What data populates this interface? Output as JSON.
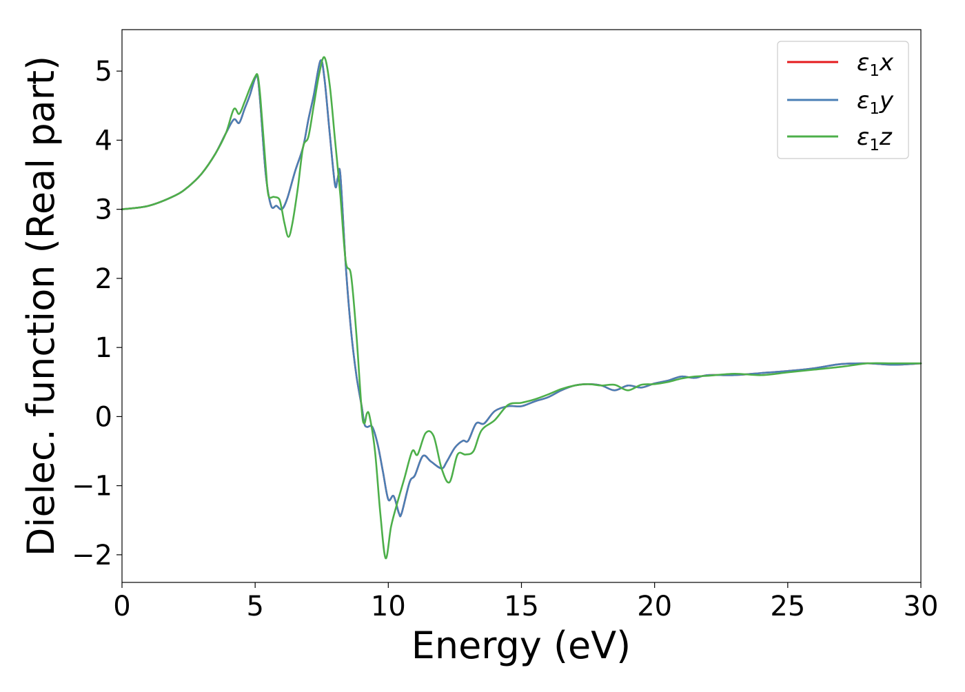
{
  "chart_data": {
    "type": "line",
    "title": "",
    "xlabel": "Energy (eV)",
    "ylabel": "Dielec. function (Real part)",
    "xlim": [
      0,
      30
    ],
    "ylim": [
      -2.4,
      5.6
    ],
    "xticks": [
      0,
      5,
      10,
      15,
      20,
      25,
      30
    ],
    "xtick_labels": [
      "0",
      "5",
      "10",
      "15",
      "20",
      "25",
      "30"
    ],
    "yticks": [
      -2,
      -1,
      0,
      1,
      2,
      3,
      4,
      5
    ],
    "ytick_labels": [
      "−2",
      "−1",
      "0",
      "1",
      "2",
      "3",
      "4",
      "5"
    ],
    "grid": false,
    "legend_position": "top-right",
    "series": [
      {
        "name": "ε1x",
        "legend": {
          "symbol": "ε",
          "sub": "1",
          "var": "x"
        },
        "color": "#e41a1c",
        "x": [
          0,
          1,
          2,
          2.5,
          3,
          3.5,
          3.9,
          4.2,
          4.4,
          4.6,
          4.8,
          5.0,
          5.1,
          5.2,
          5.4,
          5.6,
          5.8,
          6.0,
          6.2,
          6.5,
          6.8,
          7.0,
          7.2,
          7.45,
          7.6,
          7.8,
          8.0,
          8.1,
          8.2,
          8.4,
          8.6,
          8.8,
          9.0,
          9.1,
          9.2,
          9.4,
          9.6,
          9.8,
          10.0,
          10.2,
          10.4,
          10.5,
          10.8,
          11.0,
          11.3,
          11.6,
          12.0,
          12.2,
          12.5,
          12.8,
          13.0,
          13.3,
          13.6,
          14.0,
          14.5,
          15.0,
          15.5,
          16.0,
          16.5,
          17.0,
          17.5,
          18.0,
          18.5,
          19.0,
          19.5,
          20.0,
          20.5,
          21.0,
          21.5,
          22.0,
          23.0,
          24.0,
          25.0,
          26.0,
          27.0,
          28.0,
          29.0,
          30.0
        ],
        "y": [
          3.0,
          3.05,
          3.2,
          3.33,
          3.52,
          3.8,
          4.1,
          4.3,
          4.25,
          4.45,
          4.65,
          4.9,
          4.9,
          4.5,
          3.5,
          3.05,
          3.05,
          3.0,
          3.15,
          3.55,
          3.9,
          4.3,
          4.65,
          5.15,
          4.9,
          4.1,
          3.35,
          3.45,
          3.5,
          2.2,
          1.25,
          0.6,
          0.15,
          -0.1,
          -0.15,
          -0.15,
          -0.4,
          -0.8,
          -1.2,
          -1.15,
          -1.4,
          -1.4,
          -0.95,
          -0.85,
          -0.57,
          -0.65,
          -0.75,
          -0.65,
          -0.45,
          -0.35,
          -0.35,
          -0.1,
          -0.1,
          0.08,
          0.15,
          0.15,
          0.22,
          0.28,
          0.38,
          0.45,
          0.47,
          0.45,
          0.38,
          0.45,
          0.42,
          0.48,
          0.52,
          0.58,
          0.56,
          0.6,
          0.6,
          0.63,
          0.66,
          0.7,
          0.76,
          0.77,
          0.75,
          0.77
        ]
      },
      {
        "name": "ε1y",
        "legend": {
          "symbol": "ε",
          "sub": "1",
          "var": "y"
        },
        "color": "#4a7fb5",
        "x": [
          0,
          1,
          2,
          2.5,
          3,
          3.5,
          3.9,
          4.2,
          4.4,
          4.6,
          4.8,
          5.0,
          5.1,
          5.2,
          5.4,
          5.6,
          5.8,
          6.0,
          6.2,
          6.5,
          6.8,
          7.0,
          7.2,
          7.45,
          7.6,
          7.8,
          8.0,
          8.1,
          8.2,
          8.4,
          8.6,
          8.8,
          9.0,
          9.1,
          9.2,
          9.4,
          9.6,
          9.8,
          10.0,
          10.2,
          10.4,
          10.5,
          10.8,
          11.0,
          11.3,
          11.6,
          12.0,
          12.2,
          12.5,
          12.8,
          13.0,
          13.3,
          13.6,
          14.0,
          14.5,
          15.0,
          15.5,
          16.0,
          16.5,
          17.0,
          17.5,
          18.0,
          18.5,
          19.0,
          19.5,
          20.0,
          20.5,
          21.0,
          21.5,
          22.0,
          23.0,
          24.0,
          25.0,
          26.0,
          27.0,
          28.0,
          29.0,
          30.0
        ],
        "y": [
          3.0,
          3.05,
          3.2,
          3.33,
          3.52,
          3.8,
          4.1,
          4.3,
          4.25,
          4.45,
          4.65,
          4.9,
          4.9,
          4.5,
          3.5,
          3.05,
          3.05,
          3.0,
          3.15,
          3.55,
          3.9,
          4.3,
          4.65,
          5.15,
          4.9,
          4.1,
          3.35,
          3.45,
          3.5,
          2.2,
          1.25,
          0.6,
          0.15,
          -0.1,
          -0.15,
          -0.15,
          -0.4,
          -0.8,
          -1.2,
          -1.15,
          -1.4,
          -1.4,
          -0.95,
          -0.85,
          -0.57,
          -0.65,
          -0.75,
          -0.65,
          -0.45,
          -0.35,
          -0.35,
          -0.1,
          -0.1,
          0.08,
          0.15,
          0.15,
          0.22,
          0.28,
          0.38,
          0.45,
          0.47,
          0.45,
          0.38,
          0.45,
          0.42,
          0.48,
          0.52,
          0.58,
          0.56,
          0.6,
          0.6,
          0.63,
          0.66,
          0.7,
          0.76,
          0.77,
          0.75,
          0.77
        ]
      },
      {
        "name": "ε1z",
        "legend": {
          "symbol": "ε",
          "sub": "1",
          "var": "z"
        },
        "color": "#4daf4a",
        "x": [
          0,
          1,
          2,
          2.5,
          3,
          3.5,
          3.9,
          4.2,
          4.4,
          4.6,
          4.8,
          5.0,
          5.1,
          5.2,
          5.4,
          5.5,
          5.7,
          5.9,
          6.0,
          6.1,
          6.25,
          6.4,
          6.6,
          6.8,
          7.0,
          7.2,
          7.4,
          7.6,
          7.8,
          8.0,
          8.2,
          8.4,
          8.6,
          8.8,
          9.0,
          9.1,
          9.2,
          9.3,
          9.5,
          9.7,
          9.9,
          10.1,
          10.3,
          10.6,
          10.9,
          11.1,
          11.4,
          11.7,
          12.0,
          12.3,
          12.6,
          12.9,
          13.2,
          13.5,
          14.0,
          14.5,
          15.0,
          15.5,
          16.0,
          16.5,
          17.0,
          17.5,
          18.0,
          18.5,
          19.0,
          19.5,
          20.0,
          20.5,
          21.0,
          21.5,
          22.0,
          23.0,
          24.0,
          25.0,
          26.0,
          27.0,
          28.0,
          29.0,
          30.0
        ],
        "y": [
          3.0,
          3.05,
          3.2,
          3.33,
          3.52,
          3.8,
          4.1,
          4.45,
          4.38,
          4.55,
          4.75,
          4.92,
          4.93,
          4.6,
          3.6,
          3.2,
          3.18,
          3.15,
          3.0,
          2.8,
          2.6,
          2.8,
          3.3,
          3.9,
          4.05,
          4.5,
          4.95,
          5.2,
          4.8,
          4.0,
          3.2,
          2.25,
          2.05,
          1.2,
          0.1,
          -0.1,
          0.05,
          0.0,
          -0.5,
          -1.4,
          -2.05,
          -1.6,
          -1.3,
          -0.9,
          -0.5,
          -0.55,
          -0.24,
          -0.28,
          -0.75,
          -0.95,
          -0.55,
          -0.55,
          -0.5,
          -0.2,
          -0.05,
          0.17,
          0.2,
          0.25,
          0.32,
          0.4,
          0.45,
          0.47,
          0.45,
          0.46,
          0.38,
          0.46,
          0.47,
          0.5,
          0.55,
          0.58,
          0.59,
          0.62,
          0.6,
          0.64,
          0.68,
          0.72,
          0.77,
          0.77,
          0.77
        ]
      }
    ]
  }
}
